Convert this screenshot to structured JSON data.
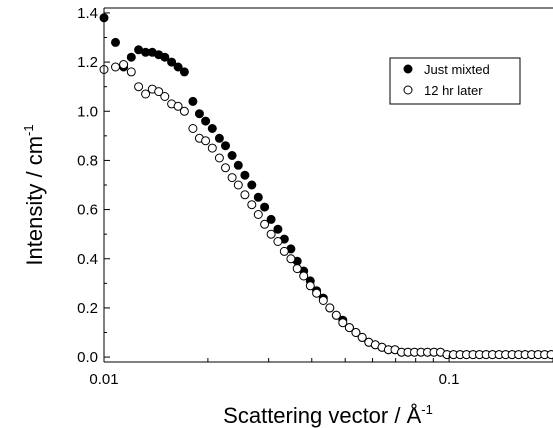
{
  "chart_data": {
    "type": "scatter",
    "title": "",
    "xlabel": "Scattering vector / Å",
    "xlabel_sup": "-1",
    "ylabel": "Intensity / cm",
    "ylabel_sup": "-1",
    "xscale": "log",
    "xlim": [
      0.01,
      0.2
    ],
    "ylim": [
      -0.02,
      1.42
    ],
    "xticks": [
      0.01,
      0.1
    ],
    "xtick_labels": [
      "0.01",
      "0.1"
    ],
    "yticks": [
      0.0,
      0.2,
      0.4,
      0.6,
      0.8,
      1.0,
      1.2,
      1.4
    ],
    "ytick_labels": [
      "0.0",
      "0.2",
      "0.4",
      "0.6",
      "0.8",
      "1.0",
      "1.2",
      "1.4"
    ],
    "grid": false,
    "legend_position": "top-right",
    "series": [
      {
        "name": "Just mixted",
        "marker": "filled-circle",
        "x": [
          0.01,
          0.0108,
          0.0114,
          0.012,
          0.0126,
          0.0132,
          0.0138,
          0.0144,
          0.015,
          0.0157,
          0.0164,
          0.0171,
          0.0181,
          0.0189,
          0.0197,
          0.0206,
          0.0216,
          0.0225,
          0.0235,
          0.0245,
          0.0256,
          0.0268,
          0.028,
          0.0292,
          0.0305,
          0.0319,
          0.0333,
          0.0348,
          0.0363,
          0.0379,
          0.0396,
          0.0413,
          0.0432,
          0.0451,
          0.0471,
          0.0492,
          0.0514,
          0.0537,
          0.056,
          0.0585,
          0.0611,
          0.0639,
          0.0667,
          0.0697,
          0.0728,
          0.076,
          0.0794,
          0.0829,
          0.0866,
          0.0904,
          0.0944,
          0.0986,
          0.103,
          0.1076,
          0.1123,
          0.1173,
          0.1225,
          0.128,
          0.1336,
          0.1396,
          0.1458,
          0.1522,
          0.159,
          0.166,
          0.1734,
          0.1811,
          0.1891,
          0.1975
        ],
        "y": [
          1.38,
          1.28,
          1.18,
          1.22,
          1.25,
          1.24,
          1.24,
          1.23,
          1.22,
          1.2,
          1.18,
          1.16,
          1.04,
          0.99,
          0.96,
          0.93,
          0.89,
          0.86,
          0.82,
          0.78,
          0.74,
          0.7,
          0.65,
          0.61,
          0.56,
          0.52,
          0.48,
          0.44,
          0.39,
          0.35,
          0.31,
          0.27,
          0.24,
          0.2,
          0.17,
          0.15,
          0.12,
          0.1,
          0.08,
          0.06,
          0.05,
          0.04,
          0.03,
          0.03,
          0.02,
          0.02,
          0.02,
          0.02,
          0.02,
          0.02,
          0.02,
          0.01,
          0.01,
          0.01,
          0.01,
          0.01,
          0.01,
          0.01,
          0.01,
          0.01,
          0.01,
          0.01,
          0.01,
          0.01,
          0.01,
          0.01,
          0.01,
          0.01
        ]
      },
      {
        "name": "12 hr later",
        "marker": "open-circle",
        "x": [
          0.01,
          0.0108,
          0.0114,
          0.012,
          0.0126,
          0.0132,
          0.0138,
          0.0144,
          0.015,
          0.0157,
          0.0164,
          0.0171,
          0.0181,
          0.0189,
          0.0197,
          0.0206,
          0.0216,
          0.0225,
          0.0235,
          0.0245,
          0.0256,
          0.0268,
          0.028,
          0.0292,
          0.0305,
          0.0319,
          0.0333,
          0.0348,
          0.0363,
          0.0379,
          0.0396,
          0.0413,
          0.0432,
          0.0451,
          0.0471,
          0.0492,
          0.0514,
          0.0537,
          0.056,
          0.0585,
          0.0611,
          0.0639,
          0.0667,
          0.0697,
          0.0728,
          0.076,
          0.0794,
          0.0829,
          0.0866,
          0.0904,
          0.0944,
          0.0986,
          0.103,
          0.1076,
          0.1123,
          0.1173,
          0.1225,
          0.128,
          0.1336,
          0.1396,
          0.1458,
          0.1522,
          0.159,
          0.166,
          0.1734,
          0.1811,
          0.1891,
          0.1975
        ],
        "y": [
          1.17,
          1.18,
          1.19,
          1.16,
          1.1,
          1.07,
          1.09,
          1.08,
          1.06,
          1.03,
          1.02,
          1.0,
          0.93,
          0.89,
          0.88,
          0.85,
          0.81,
          0.77,
          0.73,
          0.7,
          0.66,
          0.62,
          0.58,
          0.54,
          0.5,
          0.47,
          0.43,
          0.4,
          0.36,
          0.33,
          0.29,
          0.26,
          0.23,
          0.2,
          0.17,
          0.14,
          0.12,
          0.1,
          0.08,
          0.06,
          0.05,
          0.04,
          0.03,
          0.03,
          0.02,
          0.02,
          0.02,
          0.02,
          0.02,
          0.02,
          0.02,
          0.01,
          0.01,
          0.01,
          0.01,
          0.01,
          0.01,
          0.01,
          0.01,
          0.01,
          0.01,
          0.01,
          0.01,
          0.01,
          0.01,
          0.01,
          0.01,
          0.01
        ]
      }
    ],
    "colors": {
      "marker": "#000000",
      "axis": "#000000",
      "background": "#ffffff"
    }
  }
}
